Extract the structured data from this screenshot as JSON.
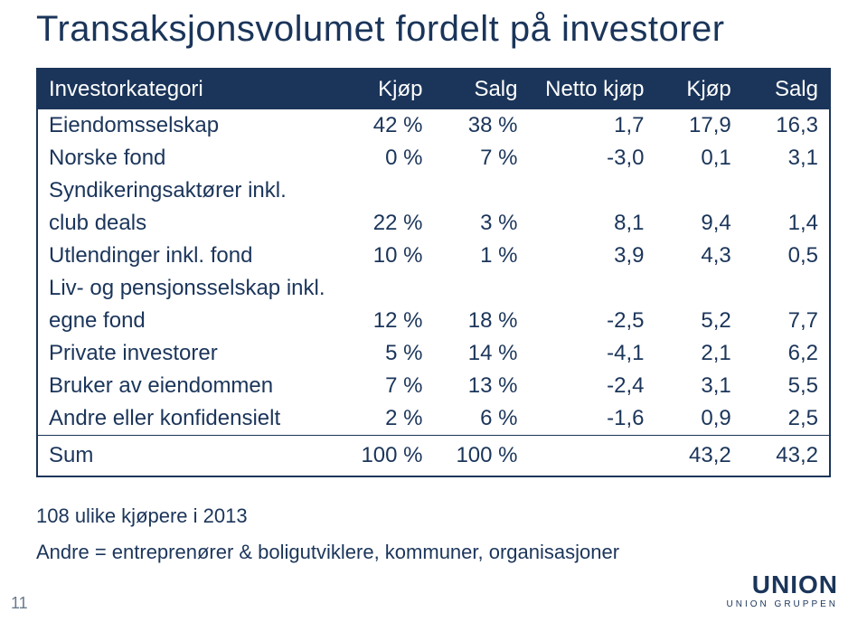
{
  "title": "Transaksjonsvolumet fordelt på investorer",
  "headers": {
    "c0": "Investorkategori",
    "c1": "Kjøp",
    "c2": "Salg",
    "c3": "Netto kjøp",
    "c4": "Kjøp",
    "c5": "Salg"
  },
  "rows": [
    {
      "c0": "Eiendomsselskap",
      "c1": "42 %",
      "c2": "38 %",
      "c3": "1,7",
      "c4": "17,9",
      "c5": "16,3"
    },
    {
      "c0": "Norske fond",
      "c1": "0 %",
      "c2": "7 %",
      "c3": "-3,0",
      "c4": "0,1",
      "c5": "3,1"
    },
    {
      "c0": "Syndikeringsaktører inkl. club deals",
      "c1": "22 %",
      "c2": "3 %",
      "c3": "8,1",
      "c4": "9,4",
      "c5": "1,4",
      "wrap": true
    },
    {
      "c0": "Utlendinger inkl. fond",
      "c1": "10 %",
      "c2": "1 %",
      "c3": "3,9",
      "c4": "4,3",
      "c5": "0,5"
    },
    {
      "c0": "Liv- og pensjonsselskap inkl. egne fond",
      "c1": "12 %",
      "c2": "18 %",
      "c3": "-2,5",
      "c4": "5,2",
      "c5": "7,7",
      "wrap": true
    },
    {
      "c0": "Private investorer",
      "c1": "5 %",
      "c2": "14 %",
      "c3": "-4,1",
      "c4": "2,1",
      "c5": "6,2"
    },
    {
      "c0": "Bruker av eiendommen",
      "c1": "7 %",
      "c2": "13 %",
      "c3": "-2,4",
      "c4": "3,1",
      "c5": "5,5"
    },
    {
      "c0": "Andre eller konfidensielt",
      "c1": "2 %",
      "c2": "6 %",
      "c3": "-1,6",
      "c4": "0,9",
      "c5": "2,5"
    }
  ],
  "sum": {
    "c0": "Sum",
    "c1": "100 %",
    "c2": "100 %",
    "c3": "",
    "c4": "43,2",
    "c5": "43,2"
  },
  "note1": "108 ulike kjøpere i 2013",
  "note2": "Andre = entreprenører & boligutviklere, kommuner, organisasjoner",
  "page_number": "11",
  "logo_big": "UNION",
  "logo_small": "UNION GRUPPEN",
  "styling": {
    "title_fontsize": 40,
    "header_bg": "#1b355a",
    "header_fg": "#ffffff",
    "text_color": "#1b355a",
    "border_color": "#1b355a",
    "col_widths_pct": [
      38,
      12,
      12,
      16,
      11,
      11
    ],
    "body_fontsize": 24,
    "notes_fontsize": 22,
    "page_bg": "#ffffff"
  }
}
